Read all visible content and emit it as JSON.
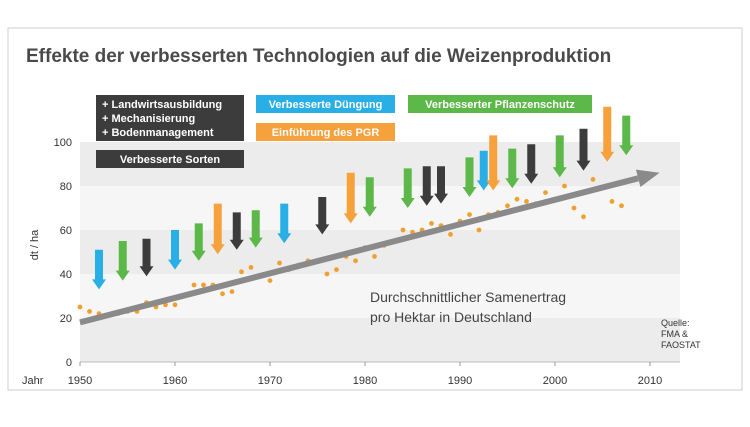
{
  "chart_data": {
    "type": "scatter",
    "title": "Effekte der verbesserten Technologien auf die Weizenproduktion",
    "ylabel": "dt / ha",
    "xlabel": "Jahr",
    "xlim": [
      1950,
      2010
    ],
    "ylim": [
      0,
      100
    ],
    "x_ticks": [
      "1950",
      "1960",
      "1970",
      "1980",
      "1990",
      "2000",
      "2010"
    ],
    "y_ticks": [
      "0",
      "20",
      "40",
      "60",
      "80",
      "100"
    ],
    "grid": "horizontal bands",
    "colors": {
      "points": "#f0a030",
      "trend": "#8a8a8a",
      "sorten": "#3c3c3c",
      "duengung": "#29aee6",
      "pflanzenschutz": "#5cb848",
      "pgr": "#f7a13d"
    },
    "legend": [
      {
        "key": "sorten",
        "lines": [
          "+ Landwirtsausbildung",
          "+ Mechanisierung",
          "+ Bodenmanagement"
        ]
      },
      {
        "key": "sorten",
        "lines": [
          "Verbesserte Sorten"
        ]
      },
      {
        "key": "duengung",
        "lines": [
          "Verbesserte Düngung"
        ]
      },
      {
        "key": "pflanzenschutz",
        "lines": [
          "Verbesserter Pflanzenschutz"
        ]
      },
      {
        "key": "pgr",
        "lines": [
          "Einführung des PGR"
        ]
      }
    ],
    "annotation": [
      "Durchschnittlicher Samenertrag",
      "pro Hektar in Deutschland"
    ],
    "source": [
      "Quelle:",
      "FMA &",
      "FAOSTAT"
    ],
    "trend": {
      "from": [
        1950,
        18
      ],
      "to": [
        2011,
        86
      ]
    },
    "points": [
      [
        1950,
        25
      ],
      [
        1951,
        23
      ],
      [
        1952,
        22
      ],
      [
        1954,
        22
      ],
      [
        1955,
        23
      ],
      [
        1956,
        23
      ],
      [
        1957,
        27
      ],
      [
        1958,
        25
      ],
      [
        1959,
        26
      ],
      [
        1960,
        26
      ],
      [
        1962,
        35
      ],
      [
        1963,
        35
      ],
      [
        1964,
        35
      ],
      [
        1965,
        31
      ],
      [
        1966,
        32
      ],
      [
        1967,
        41
      ],
      [
        1968,
        43
      ],
      [
        1969,
        39
      ],
      [
        1970,
        37
      ],
      [
        1971,
        45
      ],
      [
        1972,
        42
      ],
      [
        1973,
        44
      ],
      [
        1974,
        46
      ],
      [
        1976,
        40
      ],
      [
        1977,
        42
      ],
      [
        1978,
        48
      ],
      [
        1979,
        46
      ],
      [
        1980,
        52
      ],
      [
        1981,
        48
      ],
      [
        1982,
        53
      ],
      [
        1984,
        60
      ],
      [
        1985,
        59
      ],
      [
        1986,
        60
      ],
      [
        1987,
        63
      ],
      [
        1988,
        62
      ],
      [
        1989,
        58
      ],
      [
        1990,
        64
      ],
      [
        1991,
        67
      ],
      [
        1992,
        60
      ],
      [
        1993,
        67
      ],
      [
        1994,
        68
      ],
      [
        1995,
        71
      ],
      [
        1996,
        74
      ],
      [
        1997,
        73
      ],
      [
        1998,
        72
      ],
      [
        1999,
        77
      ],
      [
        2000,
        74
      ],
      [
        2001,
        80
      ],
      [
        2002,
        70
      ],
      [
        2003,
        66
      ],
      [
        2004,
        83
      ],
      [
        2006,
        73
      ],
      [
        2007,
        71
      ]
    ],
    "arrows": [
      {
        "x": 1952,
        "top": 51,
        "bottom": 33,
        "key": "duengung"
      },
      {
        "x": 1954.5,
        "top": 55,
        "bottom": 37,
        "key": "pflanzenschutz"
      },
      {
        "x": 1957,
        "top": 56,
        "bottom": 39,
        "key": "sorten"
      },
      {
        "x": 1960,
        "top": 60,
        "bottom": 42,
        "key": "duengung"
      },
      {
        "x": 1962.5,
        "top": 63,
        "bottom": 46,
        "key": "pflanzenschutz"
      },
      {
        "x": 1964.5,
        "top": 72,
        "bottom": 49,
        "key": "pgr"
      },
      {
        "x": 1966.5,
        "top": 68,
        "bottom": 51,
        "key": "sorten"
      },
      {
        "x": 1968.5,
        "top": 69,
        "bottom": 52,
        "key": "pflanzenschutz"
      },
      {
        "x": 1971.5,
        "top": 72,
        "bottom": 54,
        "key": "duengung"
      },
      {
        "x": 1975.5,
        "top": 75,
        "bottom": 58,
        "key": "sorten"
      },
      {
        "x": 1978.5,
        "top": 86,
        "bottom": 63,
        "key": "pgr"
      },
      {
        "x": 1980.5,
        "top": 84,
        "bottom": 66,
        "key": "pflanzenschutz"
      },
      {
        "x": 1984.5,
        "top": 88,
        "bottom": 70,
        "key": "pflanzenschutz"
      },
      {
        "x": 1986.5,
        "top": 89,
        "bottom": 71,
        "key": "sorten"
      },
      {
        "x": 1988,
        "top": 89,
        "bottom": 72,
        "key": "sorten"
      },
      {
        "x": 1991,
        "top": 93,
        "bottom": 75,
        "key": "pflanzenschutz"
      },
      {
        "x": 1992.5,
        "top": 96,
        "bottom": 78,
        "key": "duengung"
      },
      {
        "x": 1993.5,
        "top": 103,
        "bottom": 78,
        "key": "pgr"
      },
      {
        "x": 1995.5,
        "top": 97,
        "bottom": 79,
        "key": "pflanzenschutz"
      },
      {
        "x": 1997.5,
        "top": 99,
        "bottom": 81,
        "key": "sorten"
      },
      {
        "x": 2000.5,
        "top": 103,
        "bottom": 84,
        "key": "pflanzenschutz"
      },
      {
        "x": 2003,
        "top": 106,
        "bottom": 87,
        "key": "sorten"
      },
      {
        "x": 2005.5,
        "top": 116,
        "bottom": 91,
        "key": "pgr"
      },
      {
        "x": 2007.5,
        "top": 112,
        "bottom": 94,
        "key": "pflanzenschutz"
      }
    ]
  }
}
